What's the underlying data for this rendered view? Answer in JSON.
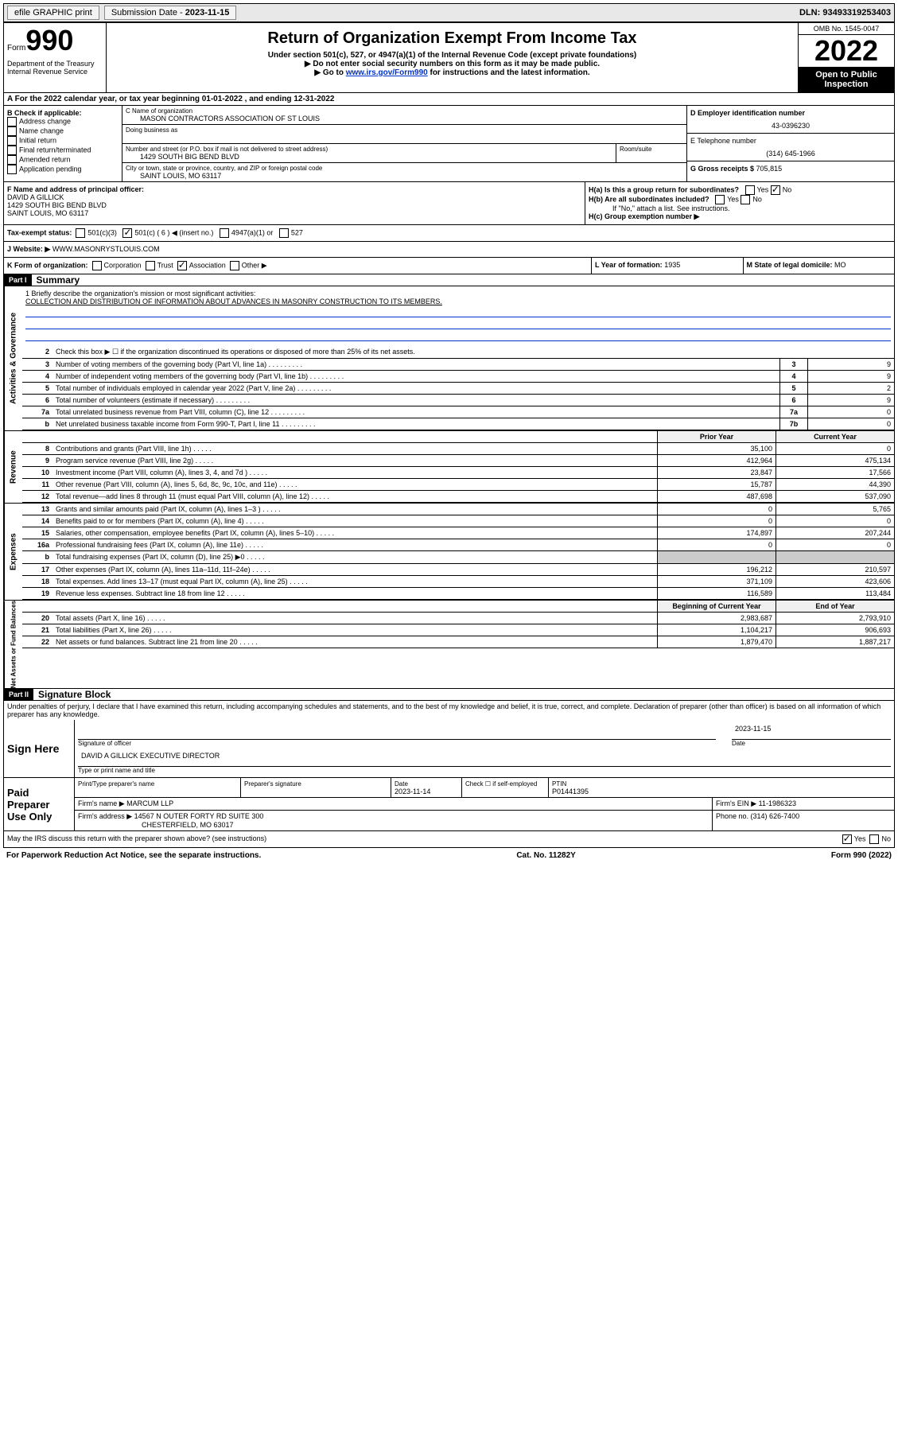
{
  "topbar": {
    "efile": "efile GRAPHIC print",
    "subdate_label": "Submission Date - ",
    "subdate": "2023-11-15",
    "dln": "DLN: 93493319253403"
  },
  "header": {
    "form_label": "Form",
    "form_num": "990",
    "dept": "Department of the Treasury\nInternal Revenue Service",
    "title": "Return of Organization Exempt From Income Tax",
    "sub1": "Under section 501(c), 527, or 4947(a)(1) of the Internal Revenue Code (except private foundations)",
    "sub2": "▶ Do not enter social security numbers on this form as it may be made public.",
    "sub3a": "▶ Go to ",
    "sub3_link": "www.irs.gov/Form990",
    "sub3b": " for instructions and the latest information.",
    "omb": "OMB No. 1545-0047",
    "year": "2022",
    "open": "Open to Public Inspection"
  },
  "section_a": "A For the 2022 calendar year, or tax year beginning 01-01-2022     , and ending 12-31-2022",
  "col_b": {
    "title": "B Check if applicable:",
    "items": [
      "Address change",
      "Name change",
      "Initial return",
      "Final return/terminated",
      "Amended return",
      "Application pending"
    ]
  },
  "box_c": {
    "label": "C Name of organization",
    "name": "MASON CONTRACTORS ASSOCIATION OF ST LOUIS",
    "dba_label": "Doing business as",
    "addr_label": "Number and street (or P.O. box if mail is not delivered to street address)",
    "addr": "1429 SOUTH BIG BEND BLVD",
    "room_label": "Room/suite",
    "city_label": "City or town, state or province, country, and ZIP or foreign postal code",
    "city": "SAINT LOUIS, MO  63117"
  },
  "col_d": {
    "ein_label": "D Employer identification number",
    "ein": "43-0396230",
    "phone_label": "E Telephone number",
    "phone": "(314) 645-1966",
    "gross_label": "G Gross receipts $ ",
    "gross": "705,815"
  },
  "row_f": {
    "label": "F Name and address of principal officer:",
    "name": "DAVID A GILLICK",
    "addr": "1429 SOUTH BIG BEND BLVD\nSAINT LOUIS, MO  63117"
  },
  "row_h": {
    "ha": "H(a)  Is this a group return for subordinates?",
    "hb": "H(b)  Are all subordinates included?",
    "hb_note": "If \"No,\" attach a list. See instructions.",
    "hc": "H(c)  Group exemption number ▶"
  },
  "row_i": {
    "label": "Tax-exempt status:",
    "opt1": "501(c)(3)",
    "opt2": "501(c) ( 6 ) ◀ (insert no.)",
    "opt3": "4947(a)(1) or",
    "opt4": "527"
  },
  "row_j": {
    "label": "J",
    "text": "Website: ▶",
    "value": "WWW.MASONRYSTLOUIS.COM"
  },
  "row_k": {
    "label": "K Form of organization:",
    "opts": [
      "Corporation",
      "Trust",
      "Association",
      "Other ▶"
    ],
    "l_label": "L Year of formation: ",
    "l_val": "1935",
    "m_label": "M State of legal domicile: ",
    "m_val": "MO"
  },
  "part1": {
    "header": "Part I",
    "title": "Summary"
  },
  "mission": {
    "label": "1   Briefly describe the organization's mission or most significant activities:",
    "text": "COLLECTION AND DISTRIBUTION OF INFORMATION ABOUT ADVANCES IN MASONRY CONSTRUCTION TO ITS MEMBERS."
  },
  "governance_rows": [
    {
      "n": "2",
      "t": "Check this box ▶ ☐  if the organization discontinued its operations or disposed of more than 25% of its net assets."
    },
    {
      "n": "3",
      "t": "Number of voting members of the governing body (Part VI, line 1a)",
      "box": "3",
      "v": "9"
    },
    {
      "n": "4",
      "t": "Number of independent voting members of the governing body (Part VI, line 1b)",
      "box": "4",
      "v": "9"
    },
    {
      "n": "5",
      "t": "Total number of individuals employed in calendar year 2022 (Part V, line 2a)",
      "box": "5",
      "v": "2"
    },
    {
      "n": "6",
      "t": "Total number of volunteers (estimate if necessary)",
      "box": "6",
      "v": "9"
    },
    {
      "n": "7a",
      "t": "Total unrelated business revenue from Part VIII, column (C), line 12",
      "box": "7a",
      "v": "0"
    },
    {
      "n": "b",
      "t": "Net unrelated business taxable income from Form 990-T, Part I, line 11",
      "box": "7b",
      "v": "0"
    }
  ],
  "revenue_header": {
    "prior": "Prior Year",
    "current": "Current Year"
  },
  "revenue_rows": [
    {
      "n": "8",
      "t": "Contributions and grants (Part VIII, line 1h)",
      "p": "35,100",
      "c": "0"
    },
    {
      "n": "9",
      "t": "Program service revenue (Part VIII, line 2g)",
      "p": "412,964",
      "c": "475,134"
    },
    {
      "n": "10",
      "t": "Investment income (Part VIII, column (A), lines 3, 4, and 7d )",
      "p": "23,847",
      "c": "17,566"
    },
    {
      "n": "11",
      "t": "Other revenue (Part VIII, column (A), lines 5, 6d, 8c, 9c, 10c, and 11e)",
      "p": "15,787",
      "c": "44,390"
    },
    {
      "n": "12",
      "t": "Total revenue—add lines 8 through 11 (must equal Part VIII, column (A), line 12)",
      "p": "487,698",
      "c": "537,090"
    }
  ],
  "expense_rows": [
    {
      "n": "13",
      "t": "Grants and similar amounts paid (Part IX, column (A), lines 1–3 )",
      "p": "0",
      "c": "5,765"
    },
    {
      "n": "14",
      "t": "Benefits paid to or for members (Part IX, column (A), line 4)",
      "p": "0",
      "c": "0"
    },
    {
      "n": "15",
      "t": "Salaries, other compensation, employee benefits (Part IX, column (A), lines 5–10)",
      "p": "174,897",
      "c": "207,244"
    },
    {
      "n": "16a",
      "t": "Professional fundraising fees (Part IX, column (A), line 11e)",
      "p": "0",
      "c": "0"
    },
    {
      "n": "b",
      "t": "Total fundraising expenses (Part IX, column (D), line 25) ▶0",
      "p": "",
      "c": ""
    },
    {
      "n": "17",
      "t": "Other expenses (Part IX, column (A), lines 11a–11d, 11f–24e)",
      "p": "196,212",
      "c": "210,597"
    },
    {
      "n": "18",
      "t": "Total expenses. Add lines 13–17 (must equal Part IX, column (A), line 25)",
      "p": "371,109",
      "c": "423,606"
    },
    {
      "n": "19",
      "t": "Revenue less expenses. Subtract line 18 from line 12",
      "p": "116,589",
      "c": "113,484"
    }
  ],
  "netassets_header": {
    "prior": "Beginning of Current Year",
    "current": "End of Year"
  },
  "netassets_rows": [
    {
      "n": "20",
      "t": "Total assets (Part X, line 16)",
      "p": "2,983,687",
      "c": "2,793,910"
    },
    {
      "n": "21",
      "t": "Total liabilities (Part X, line 26)",
      "p": "1,104,217",
      "c": "906,693"
    },
    {
      "n": "22",
      "t": "Net assets or fund balances. Subtract line 21 from line 20",
      "p": "1,879,470",
      "c": "1,887,217"
    }
  ],
  "part2": {
    "header": "Part II",
    "title": "Signature Block",
    "decl": "Under penalties of perjury, I declare that I have examined this return, including accompanying schedules and statements, and to the best of my knowledge and belief, it is true, correct, and complete. Declaration of preparer (other than officer) is based on all information of which preparer has any knowledge."
  },
  "sign": {
    "label": "Sign Here",
    "sig_label": "Signature of officer",
    "date": "2023-11-15",
    "date_label": "Date",
    "name": "DAVID A GILLICK  EXECUTIVE DIRECTOR",
    "name_label": "Type or print name and title"
  },
  "prep": {
    "label": "Paid Preparer Use Only",
    "h1": "Print/Type preparer's name",
    "h2": "Preparer's signature",
    "h3": "Date",
    "h3v": "2023-11-14",
    "h4": "Check ☐ if self-employed",
    "h5": "PTIN",
    "h5v": "P01441395",
    "firm_label": "Firm's name   ▶",
    "firm": "MARCUM LLP",
    "ein_label": "Firm's EIN ▶",
    "ein": "11-1986323",
    "addr_label": "Firm's address ▶",
    "addr": "14567 N OUTER FORTY RD SUITE 300",
    "addr2": "CHESTERFIELD, MO  63017",
    "phone_label": "Phone no. ",
    "phone": "(314) 626-7400"
  },
  "discuss": "May the IRS discuss this return with the preparer shown above? (see instructions)",
  "footer": {
    "left": "For Paperwork Reduction Act Notice, see the separate instructions.",
    "mid": "Cat. No. 11282Y",
    "right": "Form 990 (2022)"
  },
  "side_labels": {
    "gov": "Activities & Governance",
    "rev": "Revenue",
    "exp": "Expenses",
    "net": "Net Assets or Fund Balances"
  }
}
